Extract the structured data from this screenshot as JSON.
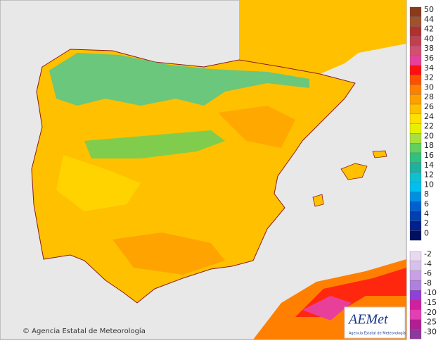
{
  "legend": {
    "warm": [
      {
        "label": "50",
        "color": "#8b3a1a"
      },
      {
        "label": "44",
        "color": "#a0522d"
      },
      {
        "label": "42",
        "color": "#b03030"
      },
      {
        "label": "40",
        "color": "#c04050"
      },
      {
        "label": "38",
        "color": "#d05070"
      },
      {
        "label": "36",
        "color": "#e8409a"
      },
      {
        "label": "34",
        "color": "#ff1010"
      },
      {
        "label": "32",
        "color": "#ff5000"
      },
      {
        "label": "30",
        "color": "#ff8000"
      },
      {
        "label": "28",
        "color": "#ffa000"
      },
      {
        "label": "26",
        "color": "#ffc000"
      },
      {
        "label": "24",
        "color": "#ffe000"
      },
      {
        "label": "22",
        "color": "#e8f000"
      },
      {
        "label": "20",
        "color": "#a8e040"
      },
      {
        "label": "18",
        "color": "#60d060"
      },
      {
        "label": "16",
        "color": "#30c080"
      },
      {
        "label": "14",
        "color": "#20b0a0"
      },
      {
        "label": "12",
        "color": "#10c0d0"
      },
      {
        "label": "10",
        "color": "#00c0f0"
      },
      {
        "label": "8",
        "color": "#0090e0"
      },
      {
        "label": "6",
        "color": "#0060d0"
      },
      {
        "label": "4",
        "color": "#0040b0"
      },
      {
        "label": "2",
        "color": "#002090"
      },
      {
        "label": "0",
        "color": "#001060"
      }
    ],
    "cold": [
      {
        "label": "-2",
        "color": "#e8d8f0"
      },
      {
        "label": "-4",
        "color": "#d8c0ec"
      },
      {
        "label": "-6",
        "color": "#c8a0e8"
      },
      {
        "label": "-8",
        "color": "#b080e0"
      },
      {
        "label": "-10",
        "color": "#9040d8"
      },
      {
        "label": "-15",
        "color": "#d020a0"
      },
      {
        "label": "-20",
        "color": "#e040b0"
      },
      {
        "label": "-25",
        "color": "#b02090"
      },
      {
        "label": "-30",
        "color": "#8a3a9a"
      }
    ]
  },
  "credit": "© Agencia Estatal de Meteorología",
  "logo": {
    "name": "AEMet",
    "subtitle": "Agencia Estatal de Meteorología"
  }
}
